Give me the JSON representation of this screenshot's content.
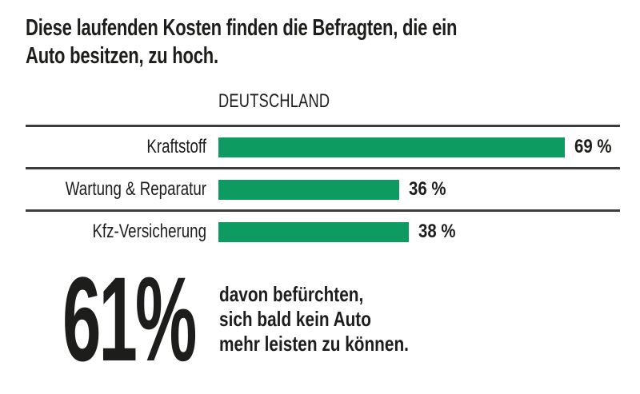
{
  "title": {
    "line1": "Diese laufenden Kosten finden die Befragten, die ein",
    "line2": "Auto besitzen, zu hoch."
  },
  "chart_data": {
    "type": "bar",
    "orientation": "horizontal",
    "region_label": "DEUTSCHLAND",
    "categories": [
      "Kraftstoff",
      "Wartung & Reparatur",
      "Kfz-Versicherung"
    ],
    "values": [
      69,
      36,
      38
    ],
    "value_labels": [
      "69 %",
      "36 %",
      "38 %"
    ],
    "unit": "%",
    "xlim": [
      0,
      80
    ],
    "bar_color": "#0d9b62",
    "grid": "horizontal-separator-above-each-row",
    "legend": "none"
  },
  "highlight": {
    "value": "61%",
    "text_lines": [
      "davon befürchten,",
      "sich bald kein Auto",
      "mehr leisten zu können."
    ]
  },
  "colors": {
    "bar_green": "#0d9b62",
    "separator": "#3d3d3d",
    "text": "#1d1d1b",
    "background": "#ffffff"
  }
}
